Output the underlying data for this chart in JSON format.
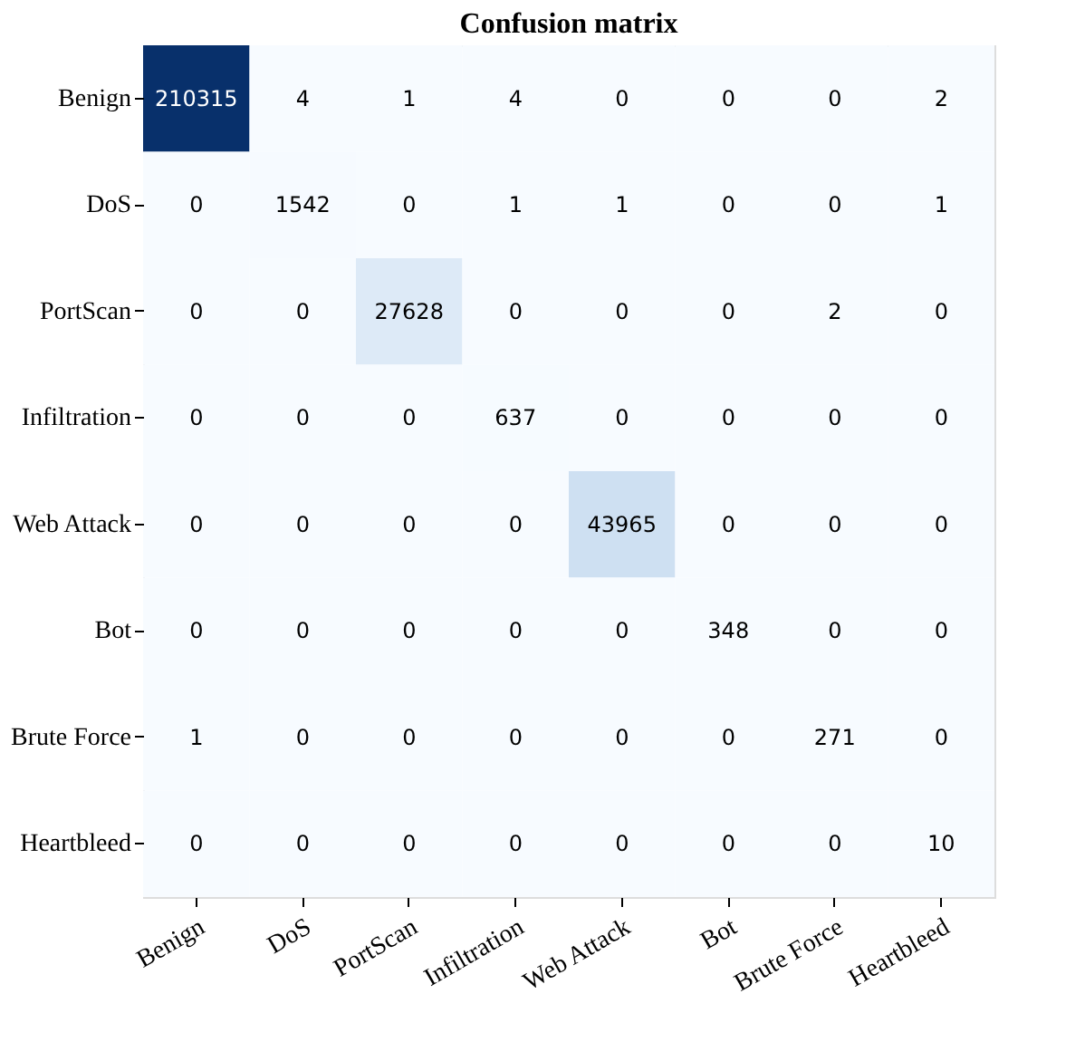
{
  "chart_data": {
    "type": "heatmap",
    "title": "Confusion matrix",
    "categories": [
      "Benign",
      "DoS",
      "PortScan",
      "Infiltration",
      "Web Attack",
      "Bot",
      "Brute Force",
      "Heartbleed"
    ],
    "y_categories": [
      "Benign",
      "DoS",
      "PortScan",
      "Infiltration",
      "Web Attack",
      "Bot",
      "Brute Force",
      "Heartbleed"
    ],
    "cells": [
      [
        210315,
        4,
        1,
        4,
        0,
        0,
        0,
        2
      ],
      [
        0,
        1542,
        0,
        1,
        1,
        0,
        0,
        1
      ],
      [
        0,
        0,
        27628,
        0,
        0,
        0,
        2,
        0
      ],
      [
        0,
        0,
        0,
        637,
        0,
        0,
        0,
        0
      ],
      [
        0,
        0,
        0,
        0,
        43965,
        0,
        0,
        0
      ],
      [
        0,
        0,
        0,
        0,
        0,
        348,
        0,
        0
      ],
      [
        1,
        0,
        0,
        0,
        0,
        0,
        271,
        0
      ],
      [
        0,
        0,
        0,
        0,
        0,
        0,
        0,
        10
      ]
    ],
    "data_labels": true,
    "grid": false,
    "legend": false
  }
}
